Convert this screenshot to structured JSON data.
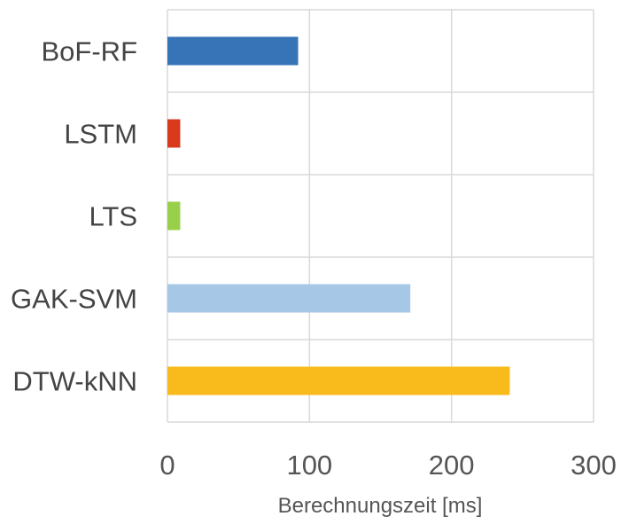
{
  "chart_data": {
    "type": "bar",
    "orientation": "horizontal",
    "title": "",
    "xlabel": "Berechnungszeit [ms]",
    "ylabel": "",
    "xlim": [
      0,
      300
    ],
    "xticks": [
      0,
      100,
      200,
      300
    ],
    "xtick_labels": [
      "0",
      "100",
      "200",
      "300"
    ],
    "grid": true,
    "legend": "none",
    "categories": [
      "BoF-RF",
      "LSTM",
      "LTS",
      "GAK-SVM",
      "DTW-kNN"
    ],
    "values": [
      92,
      9,
      9,
      171,
      241
    ],
    "colors": [
      "#3673b7",
      "#d9391c",
      "#99d04a",
      "#a7c7e6",
      "#f9bb1b"
    ]
  }
}
